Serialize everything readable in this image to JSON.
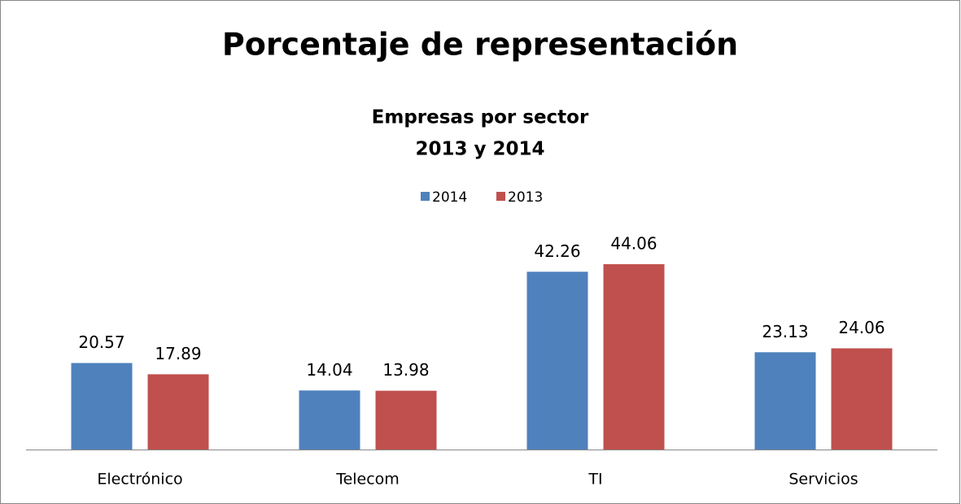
{
  "chart_data": {
    "type": "bar",
    "title": "Porcentaje de representación",
    "subtitle": [
      "Empresas por sector",
      "2013 y 2014"
    ],
    "categories": [
      "Electrónico",
      "Telecom",
      "TI",
      "Servicios"
    ],
    "series": [
      {
        "name": "2014",
        "color": "#4f81bd",
        "values": [
          20.57,
          14.04,
          42.26,
          23.13
        ]
      },
      {
        "name": "2013",
        "color": "#c0504d",
        "values": [
          17.89,
          13.98,
          44.06,
          24.06
        ]
      }
    ],
    "legend": "top"
  }
}
